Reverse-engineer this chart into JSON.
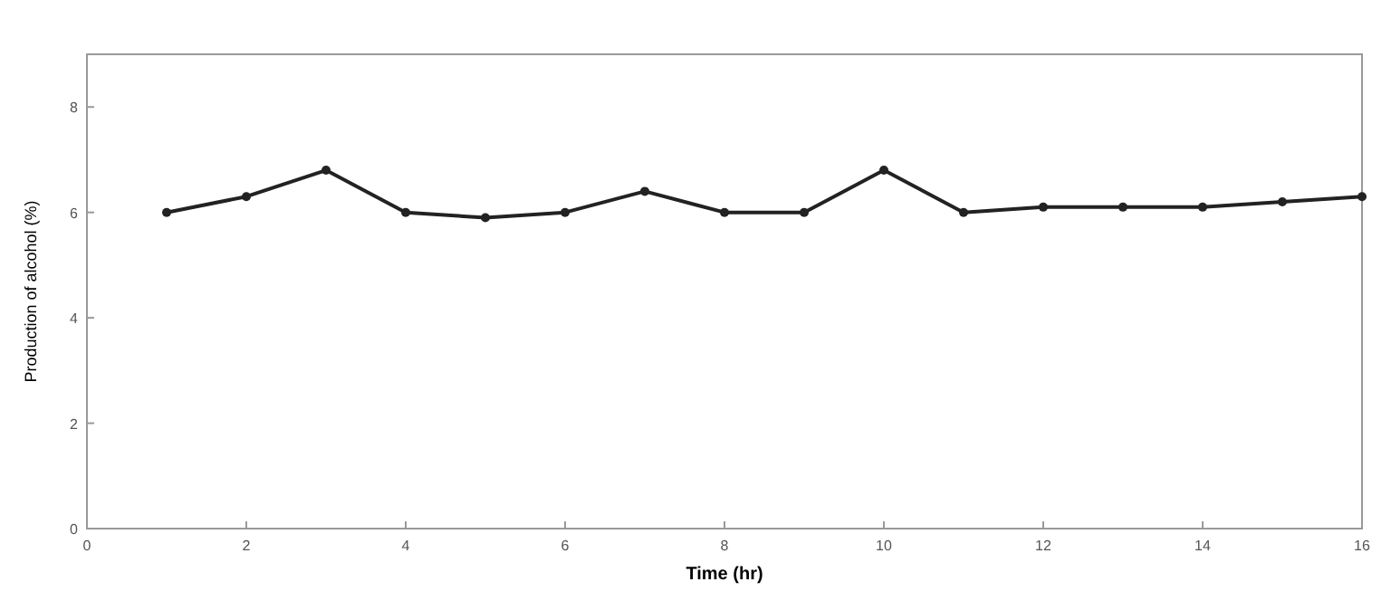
{
  "chart_data": {
    "type": "line",
    "xlabel": "Time (hr)",
    "ylabel": "Production of alcohol (%)",
    "x": [
      1,
      2,
      3,
      4,
      5,
      6,
      7,
      8,
      9,
      10,
      11,
      12,
      13,
      14,
      15,
      16
    ],
    "series": [
      {
        "color": "#222222",
        "values": [
          6.0,
          6.3,
          6.8,
          6.0,
          5.9,
          6.0,
          6.4,
          6.0,
          6.0,
          6.8,
          6.0,
          6.1,
          6.1,
          6.1,
          6.2,
          6.3
        ]
      }
    ],
    "xlim": [
      0,
      16
    ],
    "xticks": [
      0,
      2,
      4,
      6,
      8,
      10,
      12,
      14,
      16
    ],
    "ylim": [
      0,
      9
    ],
    "yticks": [
      0,
      2,
      4,
      6,
      8
    ],
    "grid": false,
    "marker": "circle",
    "line_style": "solid"
  }
}
